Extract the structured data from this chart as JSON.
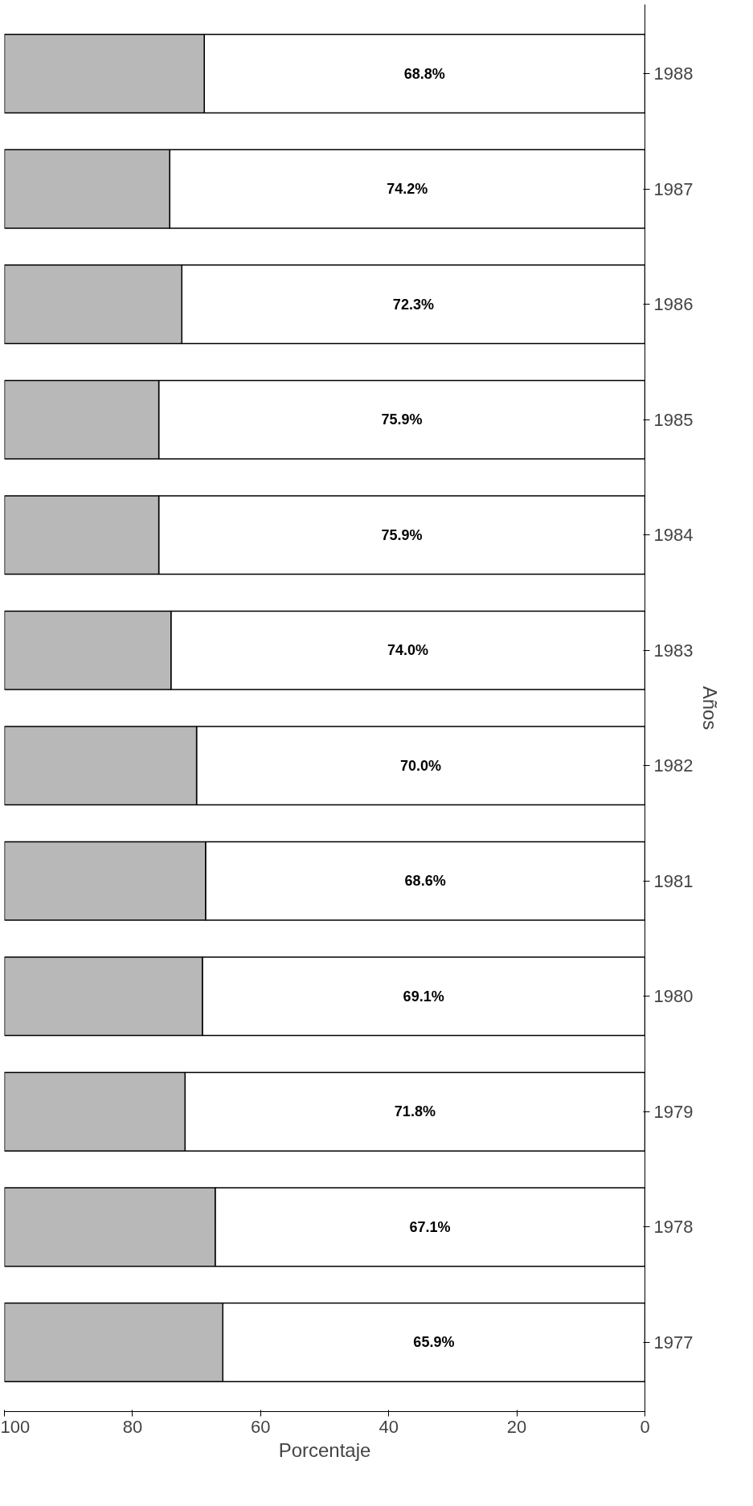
{
  "chart_data": {
    "type": "bar",
    "orientation": "horizontal",
    "stacked": true,
    "xlabel": "Porcentaje",
    "ylabel": "Años",
    "categories": [
      "1988",
      "1987",
      "1986",
      "1985",
      "1984",
      "1983",
      "1982",
      "1981",
      "1980",
      "1979",
      "1978",
      "1977"
    ],
    "series": [
      {
        "color": "#ffffff",
        "values": [
          68.8,
          74.2,
          72.3,
          75.9,
          75.9,
          74.0,
          70.0,
          68.6,
          69.1,
          71.8,
          67.1,
          65.9
        ],
        "value_labels": [
          "68.8%",
          "74.2%",
          "72.3%",
          "75.9%",
          "75.9%",
          "74.0%",
          "70.0%",
          "68.6%",
          "69.1%",
          "71.8%",
          "67.1%",
          "65.9%"
        ]
      },
      {
        "color": "#b8b8b8",
        "values": [
          31.2,
          25.8,
          27.7,
          24.1,
          24.1,
          26.0,
          30.0,
          31.4,
          30.9,
          28.2,
          32.9,
          34.1
        ]
      }
    ],
    "xlim": [
      100,
      0
    ],
    "xticks": [
      0,
      20,
      40,
      60,
      80,
      100
    ],
    "grid": false
  }
}
